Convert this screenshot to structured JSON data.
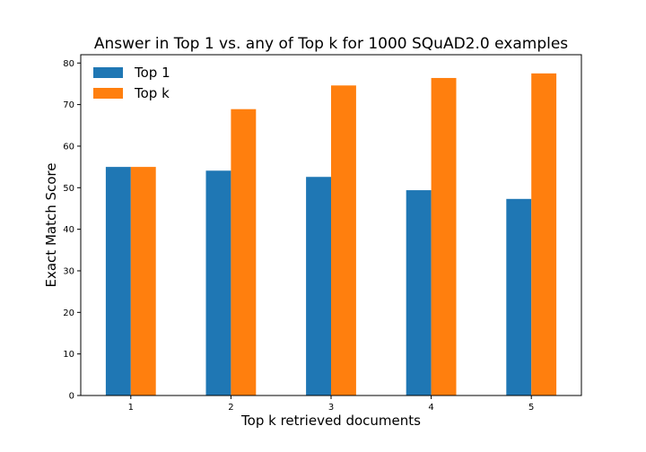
{
  "chart_data": {
    "type": "bar",
    "title": "Answer in Top 1 vs. any of Top k for 1000 SQuAD2.0 examples",
    "xlabel": "Top k retrieved documents",
    "ylabel": "Exact Match Score",
    "categories": [
      "1",
      "2",
      "3",
      "4",
      "5"
    ],
    "series": [
      {
        "name": "Top 1",
        "color": "#1f77b4",
        "values": [
          55.0,
          54.1,
          52.6,
          49.4,
          47.3
        ]
      },
      {
        "name": "Top k",
        "color": "#ff7f0e",
        "values": [
          55.0,
          68.9,
          74.6,
          76.4,
          77.5
        ]
      }
    ],
    "ylim": [
      0,
      82
    ],
    "yticks": [
      0,
      10,
      20,
      30,
      40,
      50,
      60,
      70,
      80
    ],
    "grid": false,
    "legend_position": "top-left"
  }
}
